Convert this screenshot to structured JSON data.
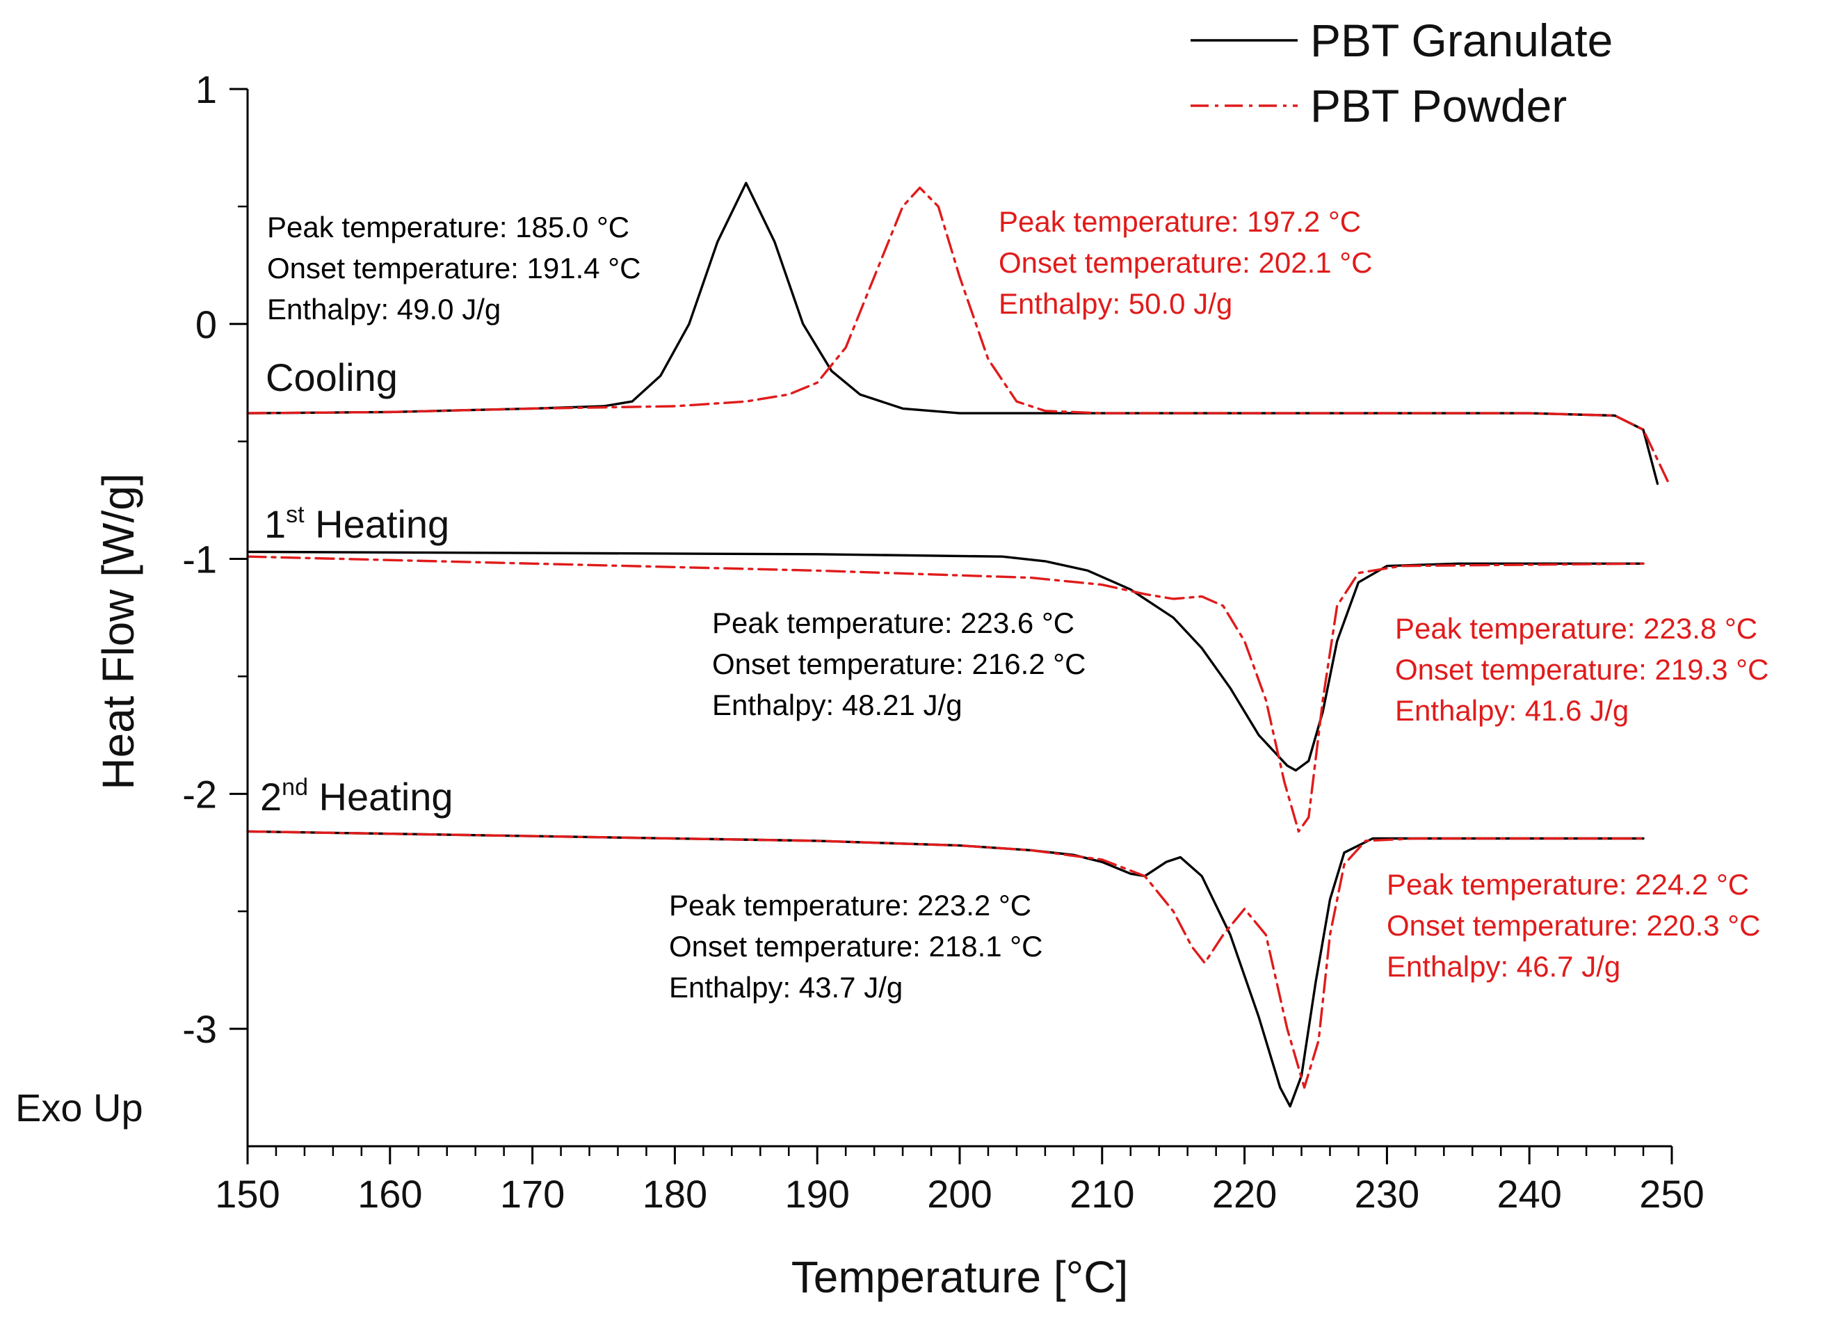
{
  "chart_data": {
    "type": "line",
    "title": "",
    "xlabel": "Temperature [°C]",
    "ylabel": "Heat Flow [W/g]",
    "xlim": [
      150,
      250
    ],
    "ylim": [
      -3.5,
      1.0
    ],
    "x_major_ticks": [
      150,
      160,
      170,
      180,
      190,
      200,
      210,
      220,
      230,
      240,
      250
    ],
    "x_tick_labels": [
      "150",
      "160",
      "170",
      "180",
      "190",
      "200",
      "210",
      "220",
      "230",
      "240",
      "250"
    ],
    "y_major_ticks": [
      1,
      0,
      -1,
      -2,
      -3
    ],
    "y_tick_labels": [
      "1",
      "0",
      "-1",
      "-2",
      "-3"
    ],
    "exo_label": "Exo Up",
    "legend": {
      "placement": "top-right",
      "entries": [
        {
          "name": "PBT Granulate",
          "color": "#000000",
          "style": "solid"
        },
        {
          "name": "PBT Powder",
          "color": "#e01b1b",
          "style": "dash-dot"
        }
      ]
    },
    "segments": [
      {
        "label": "Cooling",
        "sup": "",
        "rest": ""
      },
      {
        "label": "1",
        "sup": "st",
        "rest": " Heating"
      },
      {
        "label": "2",
        "sup": "nd",
        "rest": " Heating"
      }
    ],
    "series": [
      {
        "name": "PBT Granulate",
        "segment": "Cooling",
        "color": "#000000",
        "style": "solid",
        "points": [
          [
            150,
            -0.38
          ],
          [
            160,
            -0.375
          ],
          [
            170,
            -0.36
          ],
          [
            175,
            -0.35
          ],
          [
            177,
            -0.33
          ],
          [
            179,
            -0.22
          ],
          [
            181,
            0.0
          ],
          [
            183,
            0.35
          ],
          [
            185,
            0.6
          ],
          [
            187,
            0.35
          ],
          [
            189,
            0.0
          ],
          [
            191,
            -0.2
          ],
          [
            193,
            -0.3
          ],
          [
            196,
            -0.36
          ],
          [
            200,
            -0.38
          ],
          [
            210,
            -0.38
          ],
          [
            220,
            -0.38
          ],
          [
            230,
            -0.38
          ],
          [
            240,
            -0.38
          ],
          [
            246,
            -0.39
          ],
          [
            248,
            -0.45
          ],
          [
            249,
            -0.68
          ]
        ]
      },
      {
        "name": "PBT Powder",
        "segment": "Cooling",
        "color": "#e01b1b",
        "style": "dash-dot",
        "points": [
          [
            150,
            -0.38
          ],
          [
            160,
            -0.375
          ],
          [
            170,
            -0.36
          ],
          [
            180,
            -0.35
          ],
          [
            185,
            -0.33
          ],
          [
            188,
            -0.3
          ],
          [
            190,
            -0.25
          ],
          [
            192,
            -0.1
          ],
          [
            194,
            0.2
          ],
          [
            196,
            0.5
          ],
          [
            197.2,
            0.58
          ],
          [
            198.5,
            0.5
          ],
          [
            200,
            0.2
          ],
          [
            202,
            -0.15
          ],
          [
            204,
            -0.33
          ],
          [
            206,
            -0.37
          ],
          [
            210,
            -0.38
          ],
          [
            220,
            -0.38
          ],
          [
            230,
            -0.38
          ],
          [
            240,
            -0.38
          ],
          [
            246,
            -0.39
          ],
          [
            248,
            -0.45
          ],
          [
            249.8,
            -0.68
          ]
        ]
      },
      {
        "name": "PBT Granulate",
        "segment": "1st Heating",
        "color": "#000000",
        "style": "solid",
        "points": [
          [
            150,
            -0.97
          ],
          [
            170,
            -0.975
          ],
          [
            190,
            -0.98
          ],
          [
            203,
            -0.99
          ],
          [
            206,
            -1.01
          ],
          [
            209,
            -1.05
          ],
          [
            212,
            -1.13
          ],
          [
            215,
            -1.25
          ],
          [
            217,
            -1.38
          ],
          [
            219,
            -1.55
          ],
          [
            221,
            -1.75
          ],
          [
            223,
            -1.88
          ],
          [
            223.6,
            -1.9
          ],
          [
            224.5,
            -1.86
          ],
          [
            225.5,
            -1.65
          ],
          [
            226.5,
            -1.35
          ],
          [
            228,
            -1.1
          ],
          [
            230,
            -1.03
          ],
          [
            235,
            -1.02
          ],
          [
            248,
            -1.02
          ]
        ]
      },
      {
        "name": "PBT Powder",
        "segment": "1st Heating",
        "color": "#e01b1b",
        "style": "dash-dot",
        "points": [
          [
            150,
            -0.99
          ],
          [
            170,
            -1.02
          ],
          [
            190,
            -1.05
          ],
          [
            205,
            -1.08
          ],
          [
            210,
            -1.11
          ],
          [
            213,
            -1.15
          ],
          [
            215,
            -1.17
          ],
          [
            217,
            -1.16
          ],
          [
            218.5,
            -1.2
          ],
          [
            220,
            -1.35
          ],
          [
            221.5,
            -1.6
          ],
          [
            222.8,
            -1.95
          ],
          [
            223.8,
            -2.16
          ],
          [
            224.5,
            -2.1
          ],
          [
            225.5,
            -1.6
          ],
          [
            226.5,
            -1.2
          ],
          [
            228,
            -1.06
          ],
          [
            231,
            -1.03
          ],
          [
            248,
            -1.02
          ]
        ]
      },
      {
        "name": "PBT Granulate",
        "segment": "2nd Heating",
        "color": "#000000",
        "style": "solid",
        "points": [
          [
            150,
            -2.16
          ],
          [
            170,
            -2.18
          ],
          [
            190,
            -2.2
          ],
          [
            200,
            -2.22
          ],
          [
            205,
            -2.24
          ],
          [
            208,
            -2.26
          ],
          [
            210,
            -2.29
          ],
          [
            212,
            -2.34
          ],
          [
            213,
            -2.35
          ],
          [
            214.5,
            -2.29
          ],
          [
            215.5,
            -2.27
          ],
          [
            217,
            -2.35
          ],
          [
            219,
            -2.6
          ],
          [
            221,
            -2.95
          ],
          [
            222.5,
            -3.25
          ],
          [
            223.2,
            -3.33
          ],
          [
            224,
            -3.2
          ],
          [
            225,
            -2.8
          ],
          [
            226,
            -2.45
          ],
          [
            227,
            -2.25
          ],
          [
            229,
            -2.19
          ],
          [
            235,
            -2.19
          ],
          [
            248,
            -2.19
          ]
        ]
      },
      {
        "name": "PBT Powder",
        "segment": "2nd Heating",
        "color": "#e01b1b",
        "style": "dash-dot",
        "points": [
          [
            150,
            -2.16
          ],
          [
            170,
            -2.18
          ],
          [
            190,
            -2.2
          ],
          [
            200,
            -2.22
          ],
          [
            205,
            -2.24
          ],
          [
            210,
            -2.28
          ],
          [
            213,
            -2.35
          ],
          [
            215,
            -2.5
          ],
          [
            216.3,
            -2.65
          ],
          [
            217.2,
            -2.72
          ],
          [
            218.5,
            -2.6
          ],
          [
            220,
            -2.49
          ],
          [
            221.5,
            -2.6
          ],
          [
            223,
            -3.0
          ],
          [
            224.2,
            -3.25
          ],
          [
            225.2,
            -3.05
          ],
          [
            226,
            -2.6
          ],
          [
            227,
            -2.3
          ],
          [
            228.5,
            -2.2
          ],
          [
            232,
            -2.19
          ],
          [
            248,
            -2.19
          ]
        ]
      }
    ],
    "annotations": [
      {
        "segment": "Cooling",
        "series": "PBT Granulate",
        "color": "#000000",
        "lines": [
          "Peak temperature: 185.0 °C",
          "Onset temperature: 191.4 °C",
          "Enthalpy: 49.0 J/g"
        ]
      },
      {
        "segment": "Cooling",
        "series": "PBT Powder",
        "color": "#e01b1b",
        "lines": [
          "Peak temperature: 197.2 °C",
          "Onset temperature: 202.1 °C",
          "Enthalpy: 50.0 J/g"
        ]
      },
      {
        "segment": "1st Heating",
        "series": "PBT Granulate",
        "color": "#000000",
        "lines": [
          "Peak temperature: 223.6 °C",
          "Onset temperature: 216.2 °C",
          "Enthalpy: 48.21 J/g"
        ]
      },
      {
        "segment": "1st Heating",
        "series": "PBT Powder",
        "color": "#e01b1b",
        "lines": [
          "Peak temperature: 223.8 °C",
          "Onset temperature: 219.3 °C",
          "Enthalpy: 41.6 J/g"
        ]
      },
      {
        "segment": "2nd Heating",
        "series": "PBT Granulate",
        "color": "#000000",
        "lines": [
          "Peak temperature: 223.2 °C",
          "Onset temperature: 218.1 °C",
          "Enthalpy: 43.7 J/g"
        ]
      },
      {
        "segment": "2nd Heating",
        "series": "PBT Powder",
        "color": "#e01b1b",
        "lines": [
          "Peak temperature: 224.2 °C",
          "Onset temperature: 220.3 °C",
          "Enthalpy: 46.7 J/g"
        ]
      }
    ]
  }
}
